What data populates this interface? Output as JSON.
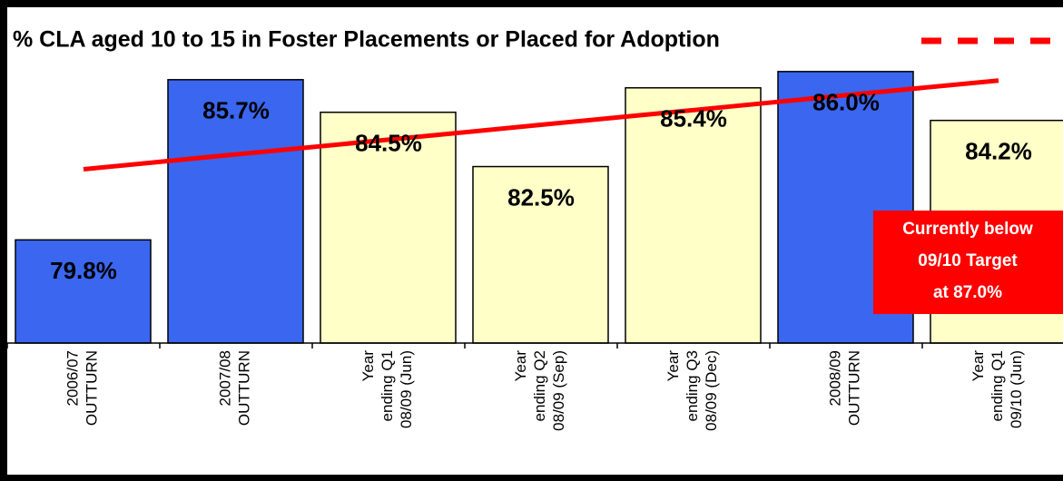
{
  "chart_data": {
    "type": "bar",
    "title": "% CLA aged 10 to 15 in Foster Placements or Placed for Adoption",
    "categories": [
      "2006/07\nOUTTURN",
      "2007/08\nOUTTURN",
      "Year\nending Q1\n08/09 (Jun)",
      "Year\nending Q2\n08/09 (Sep)",
      "Year\nending Q3\n08/09 (Dec)",
      "2008/09\nOUTTURN",
      "Year\nending Q1\n09/10 (Jun)"
    ],
    "values": [
      79.8,
      85.7,
      84.5,
      82.5,
      85.4,
      86.0,
      84.2
    ],
    "value_labels": [
      "79.8%",
      "85.7%",
      "84.5%",
      "82.5%",
      "85.4%",
      "86.0%",
      "84.2%"
    ],
    "colors": [
      "#3a66f0",
      "#3a66f0",
      "#ffffc8",
      "#ffffc8",
      "#ffffc8",
      "#3a66f0",
      "#ffffc8"
    ],
    "trend": {
      "color": "#ff0000",
      "values": [
        82.4,
        82.95,
        83.49,
        84.04,
        84.58,
        85.13,
        85.67
      ]
    },
    "ylim": [
      76,
      88
    ],
    "annotation": [
      "Currently below",
      "09/10 Target",
      "at 87.0%"
    ]
  }
}
